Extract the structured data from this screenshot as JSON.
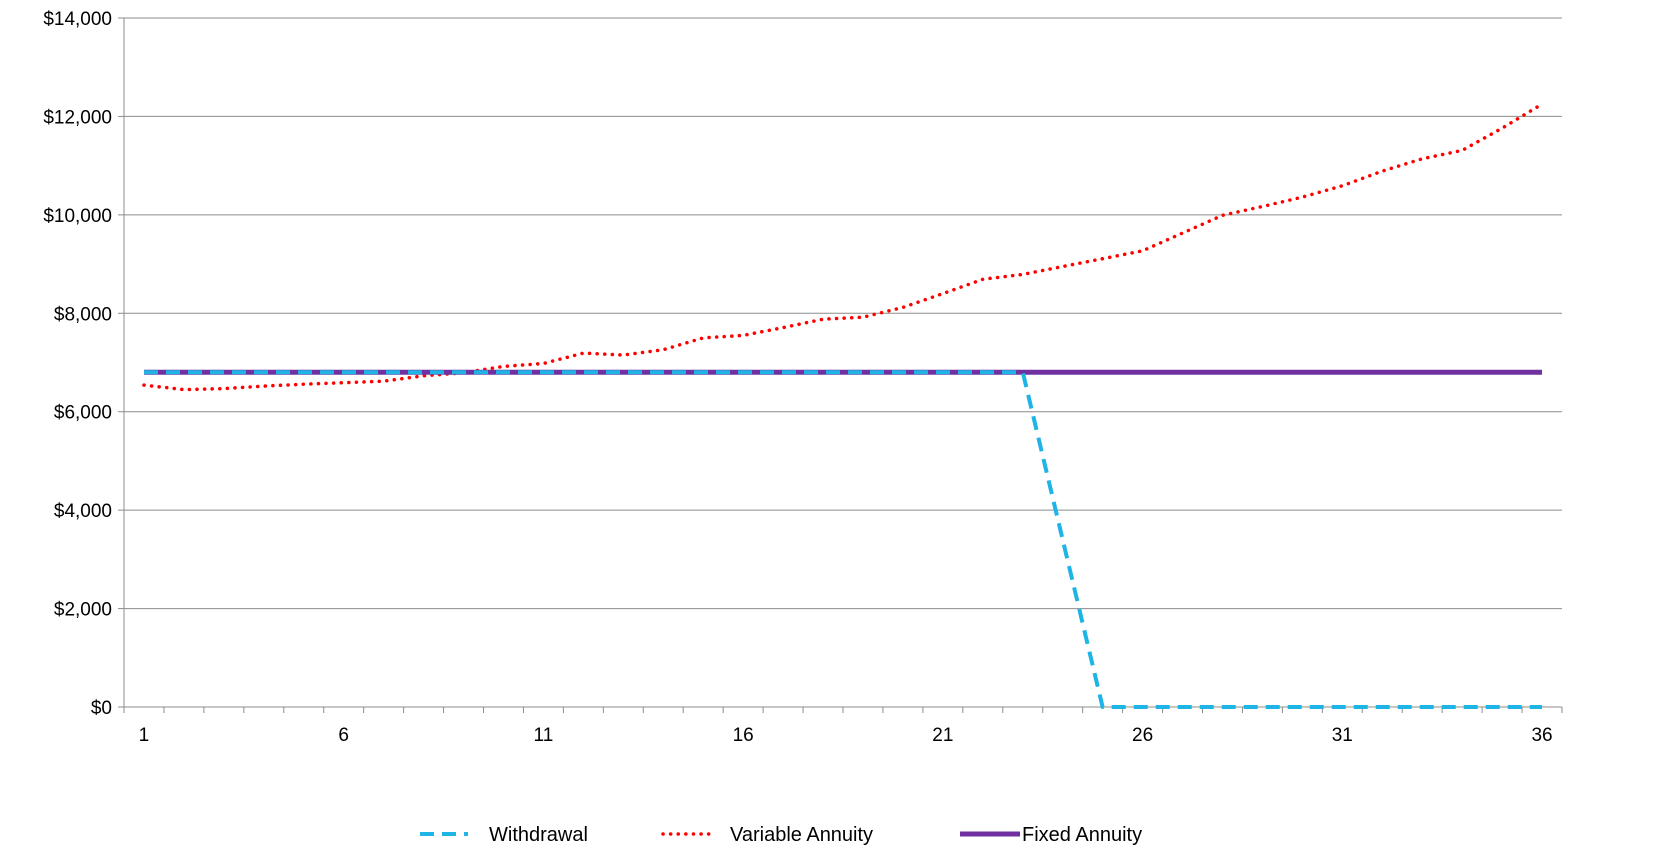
{
  "chart_data": {
    "type": "line",
    "title": "",
    "xlabel": "",
    "ylabel": "",
    "x": [
      1,
      2,
      3,
      4,
      5,
      6,
      7,
      8,
      9,
      10,
      11,
      12,
      13,
      14,
      15,
      16,
      17,
      18,
      19,
      20,
      21,
      22,
      23,
      24,
      25,
      26,
      27,
      28,
      29,
      30,
      31,
      32,
      33,
      34,
      35,
      36
    ],
    "x_tick_labels": [
      "1",
      "6",
      "11",
      "16",
      "21",
      "26",
      "31",
      "36"
    ],
    "x_tick_values": [
      1,
      6,
      11,
      16,
      21,
      26,
      31,
      36
    ],
    "xlim": [
      0.5,
      36.5
    ],
    "ylim": [
      0,
      14000
    ],
    "y_tick_values": [
      0,
      2000,
      4000,
      6000,
      8000,
      10000,
      12000,
      14000
    ],
    "y_tick_labels": [
      "$0",
      "$2,000",
      "$4,000",
      "$6,000",
      "$8,000",
      "$10,000",
      "$12,000",
      "$14,000"
    ],
    "grid": true,
    "legend_position": "bottom",
    "series": [
      {
        "name": "Withdrawal",
        "color": "#1EB4E6",
        "style": "dashed",
        "values": [
          6800,
          6800,
          6800,
          6800,
          6800,
          6800,
          6800,
          6800,
          6800,
          6800,
          6800,
          6800,
          6800,
          6800,
          6800,
          6800,
          6800,
          6800,
          6800,
          6800,
          6800,
          6800,
          6800,
          3400,
          0,
          0,
          0,
          0,
          0,
          0,
          0,
          0,
          0,
          0,
          0,
          0
        ]
      },
      {
        "name": "Variable Annuity",
        "color": "#FF0000",
        "style": "dotted",
        "values": [
          6540,
          6450,
          6470,
          6520,
          6560,
          6590,
          6620,
          6730,
          6790,
          6920,
          6980,
          7190,
          7150,
          7260,
          7500,
          7550,
          7710,
          7880,
          7920,
          8120,
          8400,
          8690,
          8790,
          8950,
          9110,
          9270,
          9630,
          9990,
          10170,
          10360,
          10590,
          10890,
          11140,
          11310,
          11760,
          12250
        ]
      },
      {
        "name": "Fixed Annuity",
        "color": "#7030A0",
        "style": "solid",
        "values": [
          6800,
          6800,
          6800,
          6800,
          6800,
          6800,
          6800,
          6800,
          6800,
          6800,
          6800,
          6800,
          6800,
          6800,
          6800,
          6800,
          6800,
          6800,
          6800,
          6800,
          6800,
          6800,
          6800,
          6800,
          6800,
          6800,
          6800,
          6800,
          6800,
          6800,
          6800,
          6800,
          6800,
          6800,
          6800,
          6800
        ]
      }
    ]
  }
}
